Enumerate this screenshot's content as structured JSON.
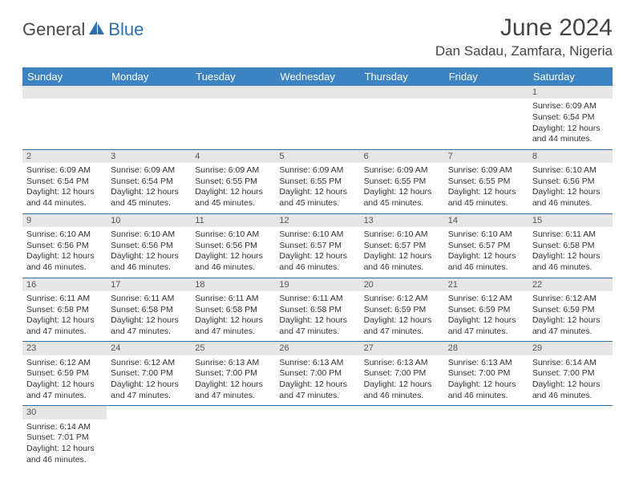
{
  "brand": {
    "name_part1": "General",
    "name_part2": "Blue"
  },
  "title": "June 2024",
  "location": "Dan Sadau, Zamfara, Nigeria",
  "colors": {
    "header_bg": "#3b83c2",
    "header_text": "#ffffff",
    "cell_border": "#2f6fb0",
    "daynum_bg": "#e6e6e6",
    "body_text": "#333333"
  },
  "weekdays": [
    "Sunday",
    "Monday",
    "Tuesday",
    "Wednesday",
    "Thursday",
    "Friday",
    "Saturday"
  ],
  "weeks": [
    [
      null,
      null,
      null,
      null,
      null,
      null,
      {
        "n": "1",
        "sr": "Sunrise: 6:09 AM",
        "ss": "Sunset: 6:54 PM",
        "dl1": "Daylight: 12 hours",
        "dl2": "and 44 minutes."
      }
    ],
    [
      {
        "n": "2",
        "sr": "Sunrise: 6:09 AM",
        "ss": "Sunset: 6:54 PM",
        "dl1": "Daylight: 12 hours",
        "dl2": "and 44 minutes."
      },
      {
        "n": "3",
        "sr": "Sunrise: 6:09 AM",
        "ss": "Sunset: 6:54 PM",
        "dl1": "Daylight: 12 hours",
        "dl2": "and 45 minutes."
      },
      {
        "n": "4",
        "sr": "Sunrise: 6:09 AM",
        "ss": "Sunset: 6:55 PM",
        "dl1": "Daylight: 12 hours",
        "dl2": "and 45 minutes."
      },
      {
        "n": "5",
        "sr": "Sunrise: 6:09 AM",
        "ss": "Sunset: 6:55 PM",
        "dl1": "Daylight: 12 hours",
        "dl2": "and 45 minutes."
      },
      {
        "n": "6",
        "sr": "Sunrise: 6:09 AM",
        "ss": "Sunset: 6:55 PM",
        "dl1": "Daylight: 12 hours",
        "dl2": "and 45 minutes."
      },
      {
        "n": "7",
        "sr": "Sunrise: 6:09 AM",
        "ss": "Sunset: 6:55 PM",
        "dl1": "Daylight: 12 hours",
        "dl2": "and 45 minutes."
      },
      {
        "n": "8",
        "sr": "Sunrise: 6:10 AM",
        "ss": "Sunset: 6:56 PM",
        "dl1": "Daylight: 12 hours",
        "dl2": "and 46 minutes."
      }
    ],
    [
      {
        "n": "9",
        "sr": "Sunrise: 6:10 AM",
        "ss": "Sunset: 6:56 PM",
        "dl1": "Daylight: 12 hours",
        "dl2": "and 46 minutes."
      },
      {
        "n": "10",
        "sr": "Sunrise: 6:10 AM",
        "ss": "Sunset: 6:56 PM",
        "dl1": "Daylight: 12 hours",
        "dl2": "and 46 minutes."
      },
      {
        "n": "11",
        "sr": "Sunrise: 6:10 AM",
        "ss": "Sunset: 6:56 PM",
        "dl1": "Daylight: 12 hours",
        "dl2": "and 46 minutes."
      },
      {
        "n": "12",
        "sr": "Sunrise: 6:10 AM",
        "ss": "Sunset: 6:57 PM",
        "dl1": "Daylight: 12 hours",
        "dl2": "and 46 minutes."
      },
      {
        "n": "13",
        "sr": "Sunrise: 6:10 AM",
        "ss": "Sunset: 6:57 PM",
        "dl1": "Daylight: 12 hours",
        "dl2": "and 46 minutes."
      },
      {
        "n": "14",
        "sr": "Sunrise: 6:10 AM",
        "ss": "Sunset: 6:57 PM",
        "dl1": "Daylight: 12 hours",
        "dl2": "and 46 minutes."
      },
      {
        "n": "15",
        "sr": "Sunrise: 6:11 AM",
        "ss": "Sunset: 6:58 PM",
        "dl1": "Daylight: 12 hours",
        "dl2": "and 46 minutes."
      }
    ],
    [
      {
        "n": "16",
        "sr": "Sunrise: 6:11 AM",
        "ss": "Sunset: 6:58 PM",
        "dl1": "Daylight: 12 hours",
        "dl2": "and 47 minutes."
      },
      {
        "n": "17",
        "sr": "Sunrise: 6:11 AM",
        "ss": "Sunset: 6:58 PM",
        "dl1": "Daylight: 12 hours",
        "dl2": "and 47 minutes."
      },
      {
        "n": "18",
        "sr": "Sunrise: 6:11 AM",
        "ss": "Sunset: 6:58 PM",
        "dl1": "Daylight: 12 hours",
        "dl2": "and 47 minutes."
      },
      {
        "n": "19",
        "sr": "Sunrise: 6:11 AM",
        "ss": "Sunset: 6:58 PM",
        "dl1": "Daylight: 12 hours",
        "dl2": "and 47 minutes."
      },
      {
        "n": "20",
        "sr": "Sunrise: 6:12 AM",
        "ss": "Sunset: 6:59 PM",
        "dl1": "Daylight: 12 hours",
        "dl2": "and 47 minutes."
      },
      {
        "n": "21",
        "sr": "Sunrise: 6:12 AM",
        "ss": "Sunset: 6:59 PM",
        "dl1": "Daylight: 12 hours",
        "dl2": "and 47 minutes."
      },
      {
        "n": "22",
        "sr": "Sunrise: 6:12 AM",
        "ss": "Sunset: 6:59 PM",
        "dl1": "Daylight: 12 hours",
        "dl2": "and 47 minutes."
      }
    ],
    [
      {
        "n": "23",
        "sr": "Sunrise: 6:12 AM",
        "ss": "Sunset: 6:59 PM",
        "dl1": "Daylight: 12 hours",
        "dl2": "and 47 minutes."
      },
      {
        "n": "24",
        "sr": "Sunrise: 6:12 AM",
        "ss": "Sunset: 7:00 PM",
        "dl1": "Daylight: 12 hours",
        "dl2": "and 47 minutes."
      },
      {
        "n": "25",
        "sr": "Sunrise: 6:13 AM",
        "ss": "Sunset: 7:00 PM",
        "dl1": "Daylight: 12 hours",
        "dl2": "and 47 minutes."
      },
      {
        "n": "26",
        "sr": "Sunrise: 6:13 AM",
        "ss": "Sunset: 7:00 PM",
        "dl1": "Daylight: 12 hours",
        "dl2": "and 47 minutes."
      },
      {
        "n": "27",
        "sr": "Sunrise: 6:13 AM",
        "ss": "Sunset: 7:00 PM",
        "dl1": "Daylight: 12 hours",
        "dl2": "and 46 minutes."
      },
      {
        "n": "28",
        "sr": "Sunrise: 6:13 AM",
        "ss": "Sunset: 7:00 PM",
        "dl1": "Daylight: 12 hours",
        "dl2": "and 46 minutes."
      },
      {
        "n": "29",
        "sr": "Sunrise: 6:14 AM",
        "ss": "Sunset: 7:00 PM",
        "dl1": "Daylight: 12 hours",
        "dl2": "and 46 minutes."
      }
    ],
    [
      {
        "n": "30",
        "sr": "Sunrise: 6:14 AM",
        "ss": "Sunset: 7:01 PM",
        "dl1": "Daylight: 12 hours",
        "dl2": "and 46 minutes."
      },
      null,
      null,
      null,
      null,
      null,
      null
    ]
  ]
}
